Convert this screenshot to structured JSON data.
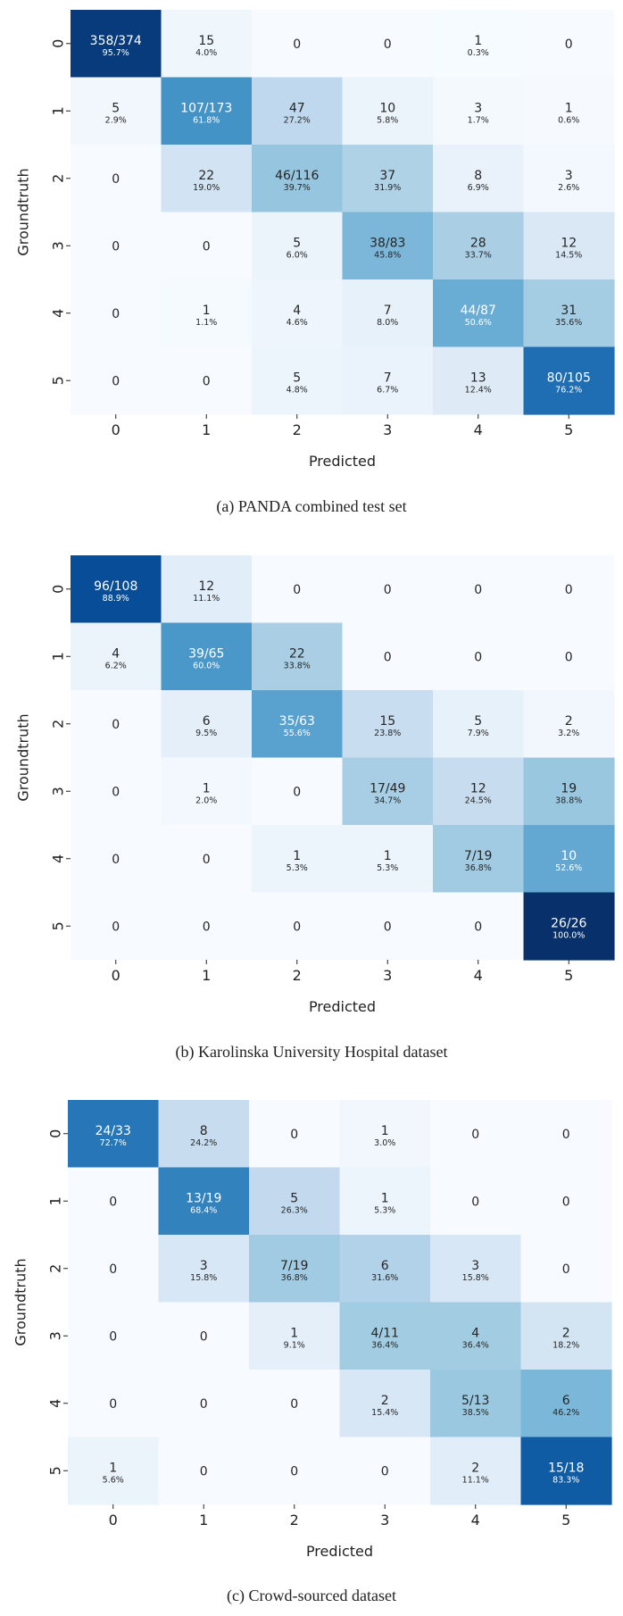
{
  "chart_data": [
    {
      "type": "heatmap",
      "caption": "(a) PANDA combined test set",
      "xlabel": "Predicted",
      "ylabel": "Groundtruth",
      "x_categories": [
        "0",
        "1",
        "2",
        "3",
        "4",
        "5"
      ],
      "y_categories": [
        "0",
        "1",
        "2",
        "3",
        "4",
        "5"
      ],
      "colormap": "Blues",
      "counts": [
        [
          358,
          15,
          0,
          0,
          1,
          0
        ],
        [
          5,
          107,
          47,
          10,
          3,
          1
        ],
        [
          0,
          22,
          46,
          37,
          8,
          3
        ],
        [
          0,
          0,
          5,
          38,
          28,
          12
        ],
        [
          0,
          1,
          4,
          7,
          44,
          31
        ],
        [
          0,
          0,
          5,
          7,
          13,
          80
        ]
      ],
      "row_totals": [
        374,
        173,
        116,
        83,
        87,
        105
      ],
      "percentages": [
        [
          "95.7%",
          "4.0%",
          "",
          "",
          "0.3%",
          ""
        ],
        [
          "2.9%",
          "61.8%",
          "27.2%",
          "5.8%",
          "1.7%",
          "0.6%"
        ],
        [
          "",
          "19.0%",
          "39.7%",
          "31.9%",
          "6.9%",
          "2.6%"
        ],
        [
          "",
          "",
          "6.0%",
          "45.8%",
          "33.7%",
          "14.5%"
        ],
        [
          "",
          "1.1%",
          "4.6%",
          "8.0%",
          "50.6%",
          "35.6%"
        ],
        [
          "",
          "",
          "4.8%",
          "6.7%",
          "12.4%",
          "76.2%"
        ]
      ]
    },
    {
      "type": "heatmap",
      "caption": "(b) Karolinska University Hospital dataset",
      "xlabel": "Predicted",
      "ylabel": "Groundtruth",
      "x_categories": [
        "0",
        "1",
        "2",
        "3",
        "4",
        "5"
      ],
      "y_categories": [
        "0",
        "1",
        "2",
        "3",
        "4",
        "5"
      ],
      "colormap": "Blues",
      "counts": [
        [
          96,
          12,
          0,
          0,
          0,
          0
        ],
        [
          4,
          39,
          22,
          0,
          0,
          0
        ],
        [
          0,
          6,
          35,
          15,
          5,
          2
        ],
        [
          0,
          1,
          0,
          17,
          12,
          19
        ],
        [
          0,
          0,
          1,
          1,
          7,
          10
        ],
        [
          0,
          0,
          0,
          0,
          0,
          26
        ]
      ],
      "row_totals": [
        108,
        65,
        63,
        49,
        19,
        26
      ],
      "percentages": [
        [
          "88.9%",
          "11.1%",
          "",
          "",
          "",
          ""
        ],
        [
          "6.2%",
          "60.0%",
          "33.8%",
          "",
          "",
          ""
        ],
        [
          "",
          "9.5%",
          "55.6%",
          "23.8%",
          "7.9%",
          "3.2%"
        ],
        [
          "",
          "2.0%",
          "",
          "34.7%",
          "24.5%",
          "38.8%"
        ],
        [
          "",
          "",
          "5.3%",
          "5.3%",
          "36.8%",
          "52.6%"
        ],
        [
          "",
          "",
          "",
          "",
          "",
          "100.0%"
        ]
      ]
    },
    {
      "type": "heatmap",
      "caption": "(c) Crowd-sourced dataset",
      "xlabel": "Predicted",
      "ylabel": "Groundtruth",
      "x_categories": [
        "0",
        "1",
        "2",
        "3",
        "4",
        "5"
      ],
      "y_categories": [
        "0",
        "1",
        "2",
        "3",
        "4",
        "5"
      ],
      "colormap": "Blues",
      "counts": [
        [
          24,
          8,
          0,
          1,
          0,
          0
        ],
        [
          0,
          13,
          5,
          1,
          0,
          0
        ],
        [
          0,
          3,
          7,
          6,
          3,
          0
        ],
        [
          0,
          0,
          1,
          4,
          4,
          2
        ],
        [
          0,
          0,
          0,
          2,
          5,
          6
        ],
        [
          1,
          0,
          0,
          0,
          2,
          15
        ]
      ],
      "row_totals": [
        33,
        19,
        19,
        11,
        13,
        18
      ],
      "percentages": [
        [
          "72.7%",
          "24.2%",
          "",
          "3.0%",
          "",
          ""
        ],
        [
          "",
          "68.4%",
          "26.3%",
          "5.3%",
          "",
          ""
        ],
        [
          "",
          "15.8%",
          "36.8%",
          "31.6%",
          "15.8%",
          ""
        ],
        [
          "",
          "",
          "9.1%",
          "36.4%",
          "36.4%",
          "18.2%"
        ],
        [
          "",
          "",
          "",
          "15.4%",
          "38.5%",
          "46.2%"
        ],
        [
          "5.6%",
          "",
          "",
          "",
          "11.1%",
          "83.3%"
        ]
      ]
    }
  ]
}
